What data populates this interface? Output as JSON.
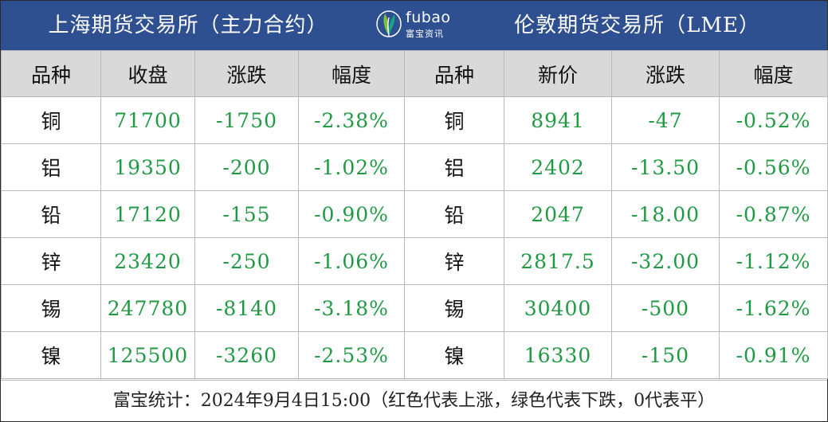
{
  "banner": {
    "left_title": "上海期货交易所（主力合约）",
    "right_title": "伦敦期货交易所（LME）",
    "logo_brand": "fubao",
    "logo_brand_cn": "富宝资讯"
  },
  "headers": {
    "shfe": [
      "品种",
      "收盘",
      "涨跌",
      "幅度"
    ],
    "lme": [
      "品种",
      "新价",
      "涨跌",
      "幅度"
    ]
  },
  "rows": [
    {
      "shfe": [
        "铜",
        "71700",
        "-1750",
        "-2.38%"
      ],
      "lme": [
        "铜",
        "8941",
        "-47",
        "-0.52%"
      ]
    },
    {
      "shfe": [
        "铝",
        "19350",
        "-200",
        "-1.02%"
      ],
      "lme": [
        "铝",
        "2402",
        "-13.50",
        "-0.56%"
      ]
    },
    {
      "shfe": [
        "铅",
        "17120",
        "-155",
        "-0.90%"
      ],
      "lme": [
        "铅",
        "2047",
        "-18.00",
        "-0.87%"
      ]
    },
    {
      "shfe": [
        "锌",
        "23420",
        "-250",
        "-1.06%"
      ],
      "lme": [
        "锌",
        "2817.5",
        "-32.00",
        "-1.12%"
      ]
    },
    {
      "shfe": [
        "锡",
        "247780",
        "-8140",
        "-3.18%"
      ],
      "lme": [
        "锡",
        "30400",
        "-500",
        "-1.62%"
      ]
    },
    {
      "shfe": [
        "镍",
        "125500",
        "-3260",
        "-2.53%"
      ],
      "lme": [
        "镍",
        "16330",
        "-150",
        "-0.91%"
      ]
    }
  ],
  "footer": "富宝统计：2024年9月4日15:00（红色代表上涨，绿色代表下跌，0代表平）",
  "colors": {
    "banner_bg": "#2e4f90",
    "header_bg": "#d9d9d9",
    "down_green": "#1f9a43",
    "logo_green": "#7cc242",
    "logo_teal": "#1aa38a"
  },
  "icons": {
    "logo": "fubao-leaf-logo"
  }
}
